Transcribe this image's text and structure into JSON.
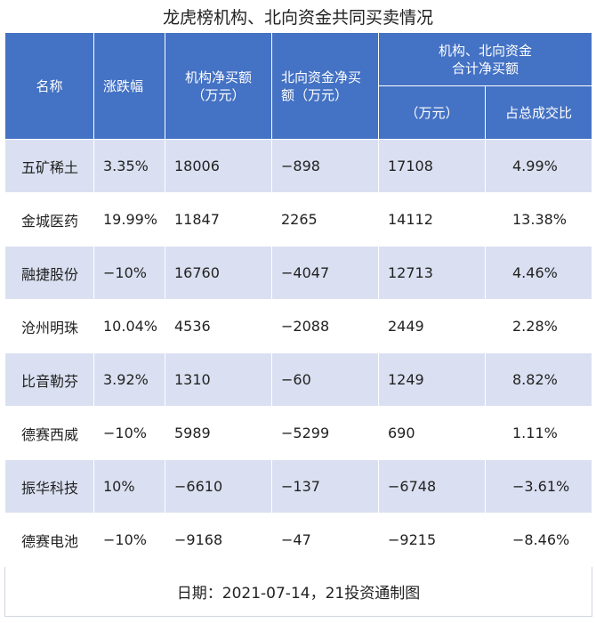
{
  "title": "龙虎榜机构、北向资金共同买卖情况",
  "headers": {
    "name": "名称",
    "change": "涨跌幅",
    "inst_net": "机构净买额（万元）",
    "inst_net_line1": "机构净买额",
    "inst_net_line2": "（万元）",
    "north_net_line1": "北向资金净买",
    "north_net_line2": "额（万元）",
    "combined_line1": "机构、北向资金",
    "combined_line2": "合计净买额",
    "combined_unit": "（万元）",
    "combined_ratio": "占总成交比"
  },
  "rows": [
    {
      "name": "五矿稀土",
      "change": "3.35%",
      "inst": "18006",
      "north": "−898",
      "total": "17108",
      "ratio": "4.99%"
    },
    {
      "name": "金城医药",
      "change": "19.99%",
      "inst": "11847",
      "north": "2265",
      "total": "14112",
      "ratio": "13.38%"
    },
    {
      "name": "融捷股份",
      "change": "−10%",
      "inst": "16760",
      "north": "−4047",
      "total": "12713",
      "ratio": "4.46%"
    },
    {
      "name": "沧州明珠",
      "change": "10.04%",
      "inst": "4536",
      "north": "−2088",
      "total": "2449",
      "ratio": "2.28%"
    },
    {
      "name": "比音勒芬",
      "change": "3.92%",
      "inst": "1310",
      "north": "−60",
      "total": "1249",
      "ratio": "8.82%"
    },
    {
      "name": "德赛西威",
      "change": "−10%",
      "inst": "5989",
      "north": "−5299",
      "total": "690",
      "ratio": "1.11%"
    },
    {
      "name": "振华科技",
      "change": "10%",
      "inst": "−6610",
      "north": "−137",
      "total": "−6748",
      "ratio": "−3.61%"
    },
    {
      "name": "德赛电池",
      "change": "−10%",
      "inst": "−9168",
      "north": "−47",
      "total": "−9215",
      "ratio": "−8.46%"
    }
  ],
  "footer": "日期：2021-07-14，21投资通制图",
  "colors": {
    "header_bg": "#4472c4",
    "band_bg": "#dae0f1"
  }
}
